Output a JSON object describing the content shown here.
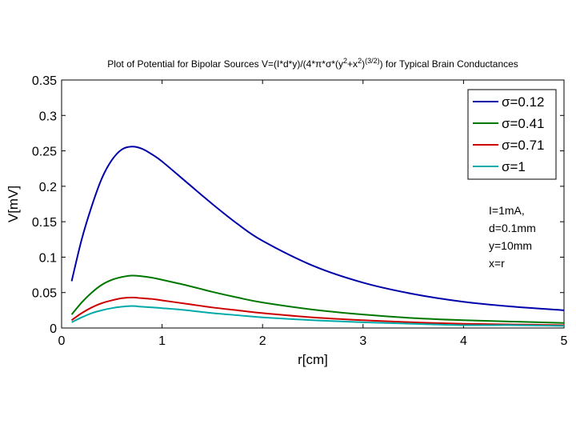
{
  "chart_data": {
    "type": "line",
    "title": "Plot of Potential for Bipolar Sources V=(I*d*y)/(4*π*σ*(y²+x²)^(3/2)) for Typical Brain Conductances",
    "xlabel": "r[cm]",
    "ylabel": "V[mV]",
    "xlim": [
      0,
      5
    ],
    "ylim": [
      0,
      0.35
    ],
    "xticks": [
      0,
      1,
      2,
      3,
      4,
      5
    ],
    "xtick_labels": [
      "0",
      "1",
      "2",
      "3",
      "4",
      "5"
    ],
    "yticks": [
      0,
      0.05,
      0.1,
      0.15,
      0.2,
      0.25,
      0.3,
      0.35
    ],
    "ytick_labels": [
      "0",
      "0.05",
      "0.1",
      "0.15",
      "0.2",
      "0.25",
      "0.3",
      "0.35"
    ],
    "grid": false,
    "legend_position": "top-right",
    "x": [
      0.1,
      0.2,
      0.3,
      0.4,
      0.5,
      0.6,
      0.7,
      0.8,
      0.9,
      1.0,
      1.25,
      1.5,
      1.75,
      2.0,
      2.5,
      3.0,
      3.5,
      4.0,
      4.5,
      5.0
    ],
    "series": [
      {
        "name": "σ=0.12",
        "color": "#0000aa",
        "values": [
          0.066,
          0.125,
          0.172,
          0.211,
          0.237,
          0.252,
          0.256,
          0.253,
          0.245,
          0.235,
          0.205,
          0.175,
          0.147,
          0.123,
          0.088,
          0.064,
          0.048,
          0.037,
          0.03,
          0.025
        ]
      },
      {
        "name": "σ=0.41",
        "color": "#007700",
        "values": [
          0.019,
          0.036,
          0.05,
          0.061,
          0.068,
          0.072,
          0.074,
          0.073,
          0.071,
          0.068,
          0.06,
          0.051,
          0.043,
          0.036,
          0.026,
          0.019,
          0.014,
          0.011,
          0.009,
          0.007
        ]
      },
      {
        "name": "σ=0.71",
        "color": "#cc0000",
        "values": [
          0.011,
          0.021,
          0.029,
          0.035,
          0.039,
          0.042,
          0.043,
          0.042,
          0.041,
          0.039,
          0.034,
          0.029,
          0.025,
          0.021,
          0.015,
          0.011,
          0.008,
          0.006,
          0.005,
          0.004
        ]
      },
      {
        "name": "σ=1",
        "color": "#00aaaa",
        "values": [
          0.008,
          0.015,
          0.021,
          0.025,
          0.028,
          0.03,
          0.031,
          0.03,
          0.029,
          0.028,
          0.025,
          0.021,
          0.018,
          0.015,
          0.011,
          0.008,
          0.006,
          0.004,
          0.004,
          0.003
        ]
      }
    ],
    "annotation": [
      "I=1mA,",
      "d=0.1mm",
      "y=10mm",
      "x=r"
    ]
  }
}
